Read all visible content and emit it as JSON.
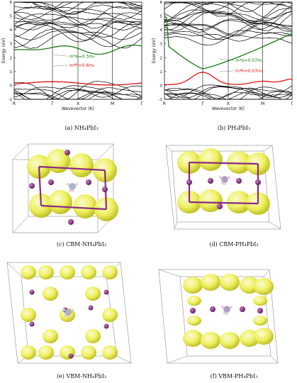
{
  "panels": [
    {
      "id": "a",
      "caption": "(a) NH₄PbI₃"
    },
    {
      "id": "b",
      "caption": "(b) PH₄PbI₃"
    },
    {
      "id": "c",
      "caption": "(c) CBM-NH₄PbI₃"
    },
    {
      "id": "d",
      "caption": "(d) CBM-PH₄PbI₃"
    },
    {
      "id": "e",
      "caption": "(e) VBM-NH₄PbI₃"
    },
    {
      "id": "f",
      "caption": "(f) VBM-PH₄PbI₃"
    }
  ],
  "chart_data": [
    {
      "type": "line",
      "title": "",
      "xlabel": "Wavevector (K)",
      "ylabel": "Energy (eV)",
      "ylim": [
        -1,
        6
      ],
      "yticks": [
        "-1",
        "0",
        "1",
        "2",
        "3",
        "4",
        "5",
        "6"
      ],
      "kpoints": [
        "R",
        "Γ",
        "X",
        "M",
        "Γ"
      ],
      "annotations": [
        "m*e=0.3m₀",
        "m*h=0.6m₀"
      ],
      "colors": {
        "conduction": "#1a7a1a",
        "valence": "#e01010",
        "other": "#000000"
      }
    },
    {
      "type": "line",
      "title": "",
      "xlabel": "Wavevector (K)",
      "ylabel": "Energy (eV)",
      "ylim": [
        -1,
        6
      ],
      "yticks": [
        "-1",
        "0",
        "1",
        "2",
        "3",
        "4",
        "5",
        "6"
      ],
      "kpoints": [
        "R",
        "Γ",
        "X",
        "M",
        "Γ"
      ],
      "annotations": [
        "m*e=0.07m₀",
        "m*h=0.07m₀"
      ],
      "colors": {
        "conduction": "#1a7a1a",
        "valence": "#e01010",
        "other": "#000000"
      }
    }
  ]
}
